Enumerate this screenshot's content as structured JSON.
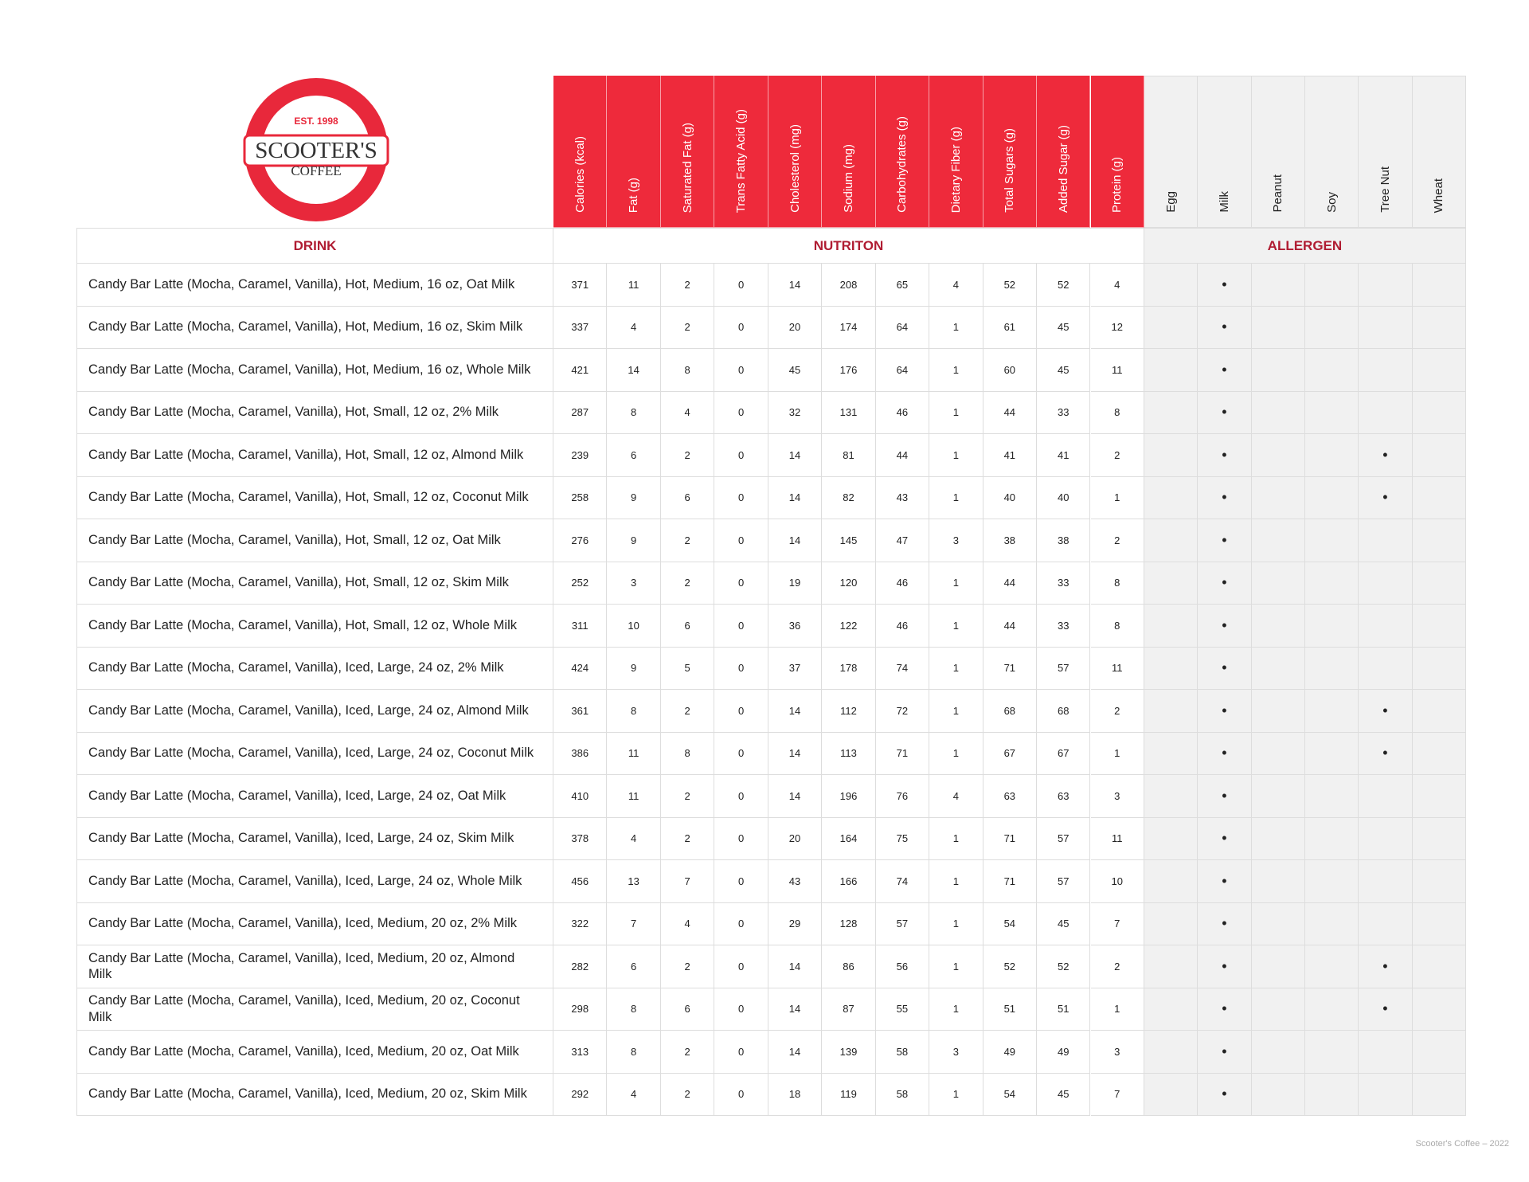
{
  "logo": {
    "est": "EST. 1998",
    "name": "SCOOTER'S",
    "sub": "COFFEE"
  },
  "sections": {
    "drink": "DRINK",
    "nutrition": "NUTRITON",
    "allergen": "ALLERGEN"
  },
  "nutrition_headers": [
    "Calories (kcal)",
    "Fat (g)",
    "Saturated Fat (g)",
    "Trans Fatty Acid (g)",
    "Cholesterol (mg)",
    "Sodium (mg)",
    "Carbohydrates (g)",
    "Dietary Fiber (g)",
    "Total Sugars (g)",
    "Added Sugar (g)",
    "Protein (g)"
  ],
  "allergen_headers": [
    "Egg",
    "Milk",
    "Peanut",
    "Soy",
    "Tree Nut",
    "Wheat"
  ],
  "rows": [
    {
      "drink": "Candy Bar Latte (Mocha, Caramel, Vanilla), Hot, Medium, 16 oz, Oat Milk",
      "nutrition": [
        371,
        11,
        2,
        0,
        14,
        208,
        65,
        4,
        52,
        52,
        4
      ],
      "allergens": [
        null,
        "•",
        null,
        null,
        null,
        null
      ]
    },
    {
      "drink": "Candy Bar Latte (Mocha, Caramel, Vanilla), Hot, Medium, 16 oz, Skim Milk",
      "nutrition": [
        337,
        4,
        2,
        0,
        20,
        174,
        64,
        1,
        61,
        45,
        12
      ],
      "allergens": [
        null,
        "•",
        null,
        null,
        null,
        null
      ]
    },
    {
      "drink": "Candy Bar Latte (Mocha, Caramel, Vanilla), Hot, Medium, 16 oz, Whole Milk",
      "nutrition": [
        421,
        14,
        8,
        0,
        45,
        176,
        64,
        1,
        60,
        45,
        11
      ],
      "allergens": [
        null,
        "•",
        null,
        null,
        null,
        null
      ]
    },
    {
      "drink": "Candy Bar Latte (Mocha, Caramel, Vanilla), Hot, Small, 12 oz, 2% Milk",
      "nutrition": [
        287,
        8,
        4,
        0,
        32,
        131,
        46,
        1,
        44,
        33,
        8
      ],
      "allergens": [
        null,
        "•",
        null,
        null,
        null,
        null
      ]
    },
    {
      "drink": "Candy Bar Latte (Mocha, Caramel, Vanilla), Hot, Small, 12 oz, Almond Milk",
      "nutrition": [
        239,
        6,
        2,
        0,
        14,
        81,
        44,
        1,
        41,
        41,
        2
      ],
      "allergens": [
        null,
        "•",
        null,
        null,
        "•",
        null
      ]
    },
    {
      "drink": "Candy Bar Latte (Mocha, Caramel, Vanilla), Hot, Small, 12 oz, Coconut Milk",
      "nutrition": [
        258,
        9,
        6,
        0,
        14,
        82,
        43,
        1,
        40,
        40,
        1
      ],
      "allergens": [
        null,
        "•",
        null,
        null,
        "•",
        null
      ]
    },
    {
      "drink": "Candy Bar Latte (Mocha, Caramel, Vanilla), Hot, Small, 12 oz, Oat Milk",
      "nutrition": [
        276,
        9,
        2,
        0,
        14,
        145,
        47,
        3,
        38,
        38,
        2
      ],
      "allergens": [
        null,
        "•",
        null,
        null,
        null,
        null
      ]
    },
    {
      "drink": "Candy Bar Latte (Mocha, Caramel, Vanilla), Hot, Small, 12 oz, Skim Milk",
      "nutrition": [
        252,
        3,
        2,
        0,
        19,
        120,
        46,
        1,
        44,
        33,
        8
      ],
      "allergens": [
        null,
        "•",
        null,
        null,
        null,
        null
      ]
    },
    {
      "drink": "Candy Bar Latte (Mocha, Caramel, Vanilla), Hot, Small, 12 oz, Whole Milk",
      "nutrition": [
        311,
        10,
        6,
        0,
        36,
        122,
        46,
        1,
        44,
        33,
        8
      ],
      "allergens": [
        null,
        "•",
        null,
        null,
        null,
        null
      ]
    },
    {
      "drink": "Candy Bar Latte (Mocha, Caramel, Vanilla), Iced, Large, 24 oz, 2% Milk",
      "nutrition": [
        424,
        9,
        5,
        0,
        37,
        178,
        74,
        1,
        71,
        57,
        11
      ],
      "allergens": [
        null,
        "•",
        null,
        null,
        null,
        null
      ]
    },
    {
      "drink": "Candy Bar Latte (Mocha, Caramel, Vanilla), Iced, Large, 24 oz, Almond Milk",
      "nutrition": [
        361,
        8,
        2,
        0,
        14,
        112,
        72,
        1,
        68,
        68,
        2
      ],
      "allergens": [
        null,
        "•",
        null,
        null,
        "•",
        null
      ]
    },
    {
      "drink": "Candy Bar Latte (Mocha, Caramel, Vanilla), Iced, Large, 24 oz, Coconut Milk",
      "nutrition": [
        386,
        11,
        8,
        0,
        14,
        113,
        71,
        1,
        67,
        67,
        1
      ],
      "allergens": [
        null,
        "•",
        null,
        null,
        "•",
        null
      ]
    },
    {
      "drink": "Candy Bar Latte (Mocha, Caramel, Vanilla), Iced, Large, 24 oz, Oat Milk",
      "nutrition": [
        410,
        11,
        2,
        0,
        14,
        196,
        76,
        4,
        63,
        63,
        3
      ],
      "allergens": [
        null,
        "•",
        null,
        null,
        null,
        null
      ]
    },
    {
      "drink": "Candy Bar Latte (Mocha, Caramel, Vanilla), Iced, Large, 24 oz, Skim Milk",
      "nutrition": [
        378,
        4,
        2,
        0,
        20,
        164,
        75,
        1,
        71,
        57,
        11
      ],
      "allergens": [
        null,
        "•",
        null,
        null,
        null,
        null
      ]
    },
    {
      "drink": "Candy Bar Latte (Mocha, Caramel, Vanilla), Iced, Large, 24 oz, Whole Milk",
      "nutrition": [
        456,
        13,
        7,
        0,
        43,
        166,
        74,
        1,
        71,
        57,
        10
      ],
      "allergens": [
        null,
        "•",
        null,
        null,
        null,
        null
      ]
    },
    {
      "drink": "Candy Bar Latte (Mocha, Caramel, Vanilla), Iced, Medium, 20 oz, 2% Milk",
      "nutrition": [
        322,
        7,
        4,
        0,
        29,
        128,
        57,
        1,
        54,
        45,
        7
      ],
      "allergens": [
        null,
        "•",
        null,
        null,
        null,
        null
      ]
    },
    {
      "drink": "Candy Bar Latte (Mocha, Caramel, Vanilla), Iced, Medium, 20 oz, Almond Milk",
      "nutrition": [
        282,
        6,
        2,
        0,
        14,
        86,
        56,
        1,
        52,
        52,
        2
      ],
      "allergens": [
        null,
        "•",
        null,
        null,
        "•",
        null
      ]
    },
    {
      "drink": "Candy Bar Latte (Mocha, Caramel, Vanilla), Iced, Medium, 20 oz, Coconut Milk",
      "nutrition": [
        298,
        8,
        6,
        0,
        14,
        87,
        55,
        1,
        51,
        51,
        1
      ],
      "allergens": [
        null,
        "•",
        null,
        null,
        "•",
        null
      ]
    },
    {
      "drink": "Candy Bar Latte (Mocha, Caramel, Vanilla), Iced, Medium, 20 oz, Oat Milk",
      "nutrition": [
        313,
        8,
        2,
        0,
        14,
        139,
        58,
        3,
        49,
        49,
        3
      ],
      "allergens": [
        null,
        "•",
        null,
        null,
        null,
        null
      ]
    },
    {
      "drink": "Candy Bar Latte (Mocha, Caramel, Vanilla), Iced, Medium, 20 oz, Skim Milk",
      "nutrition": [
        292,
        4,
        2,
        0,
        18,
        119,
        58,
        1,
        54,
        45,
        7
      ],
      "allergens": [
        null,
        "•",
        null,
        null,
        null,
        null
      ]
    }
  ],
  "footer": "Scooter's Coffee – 2022"
}
